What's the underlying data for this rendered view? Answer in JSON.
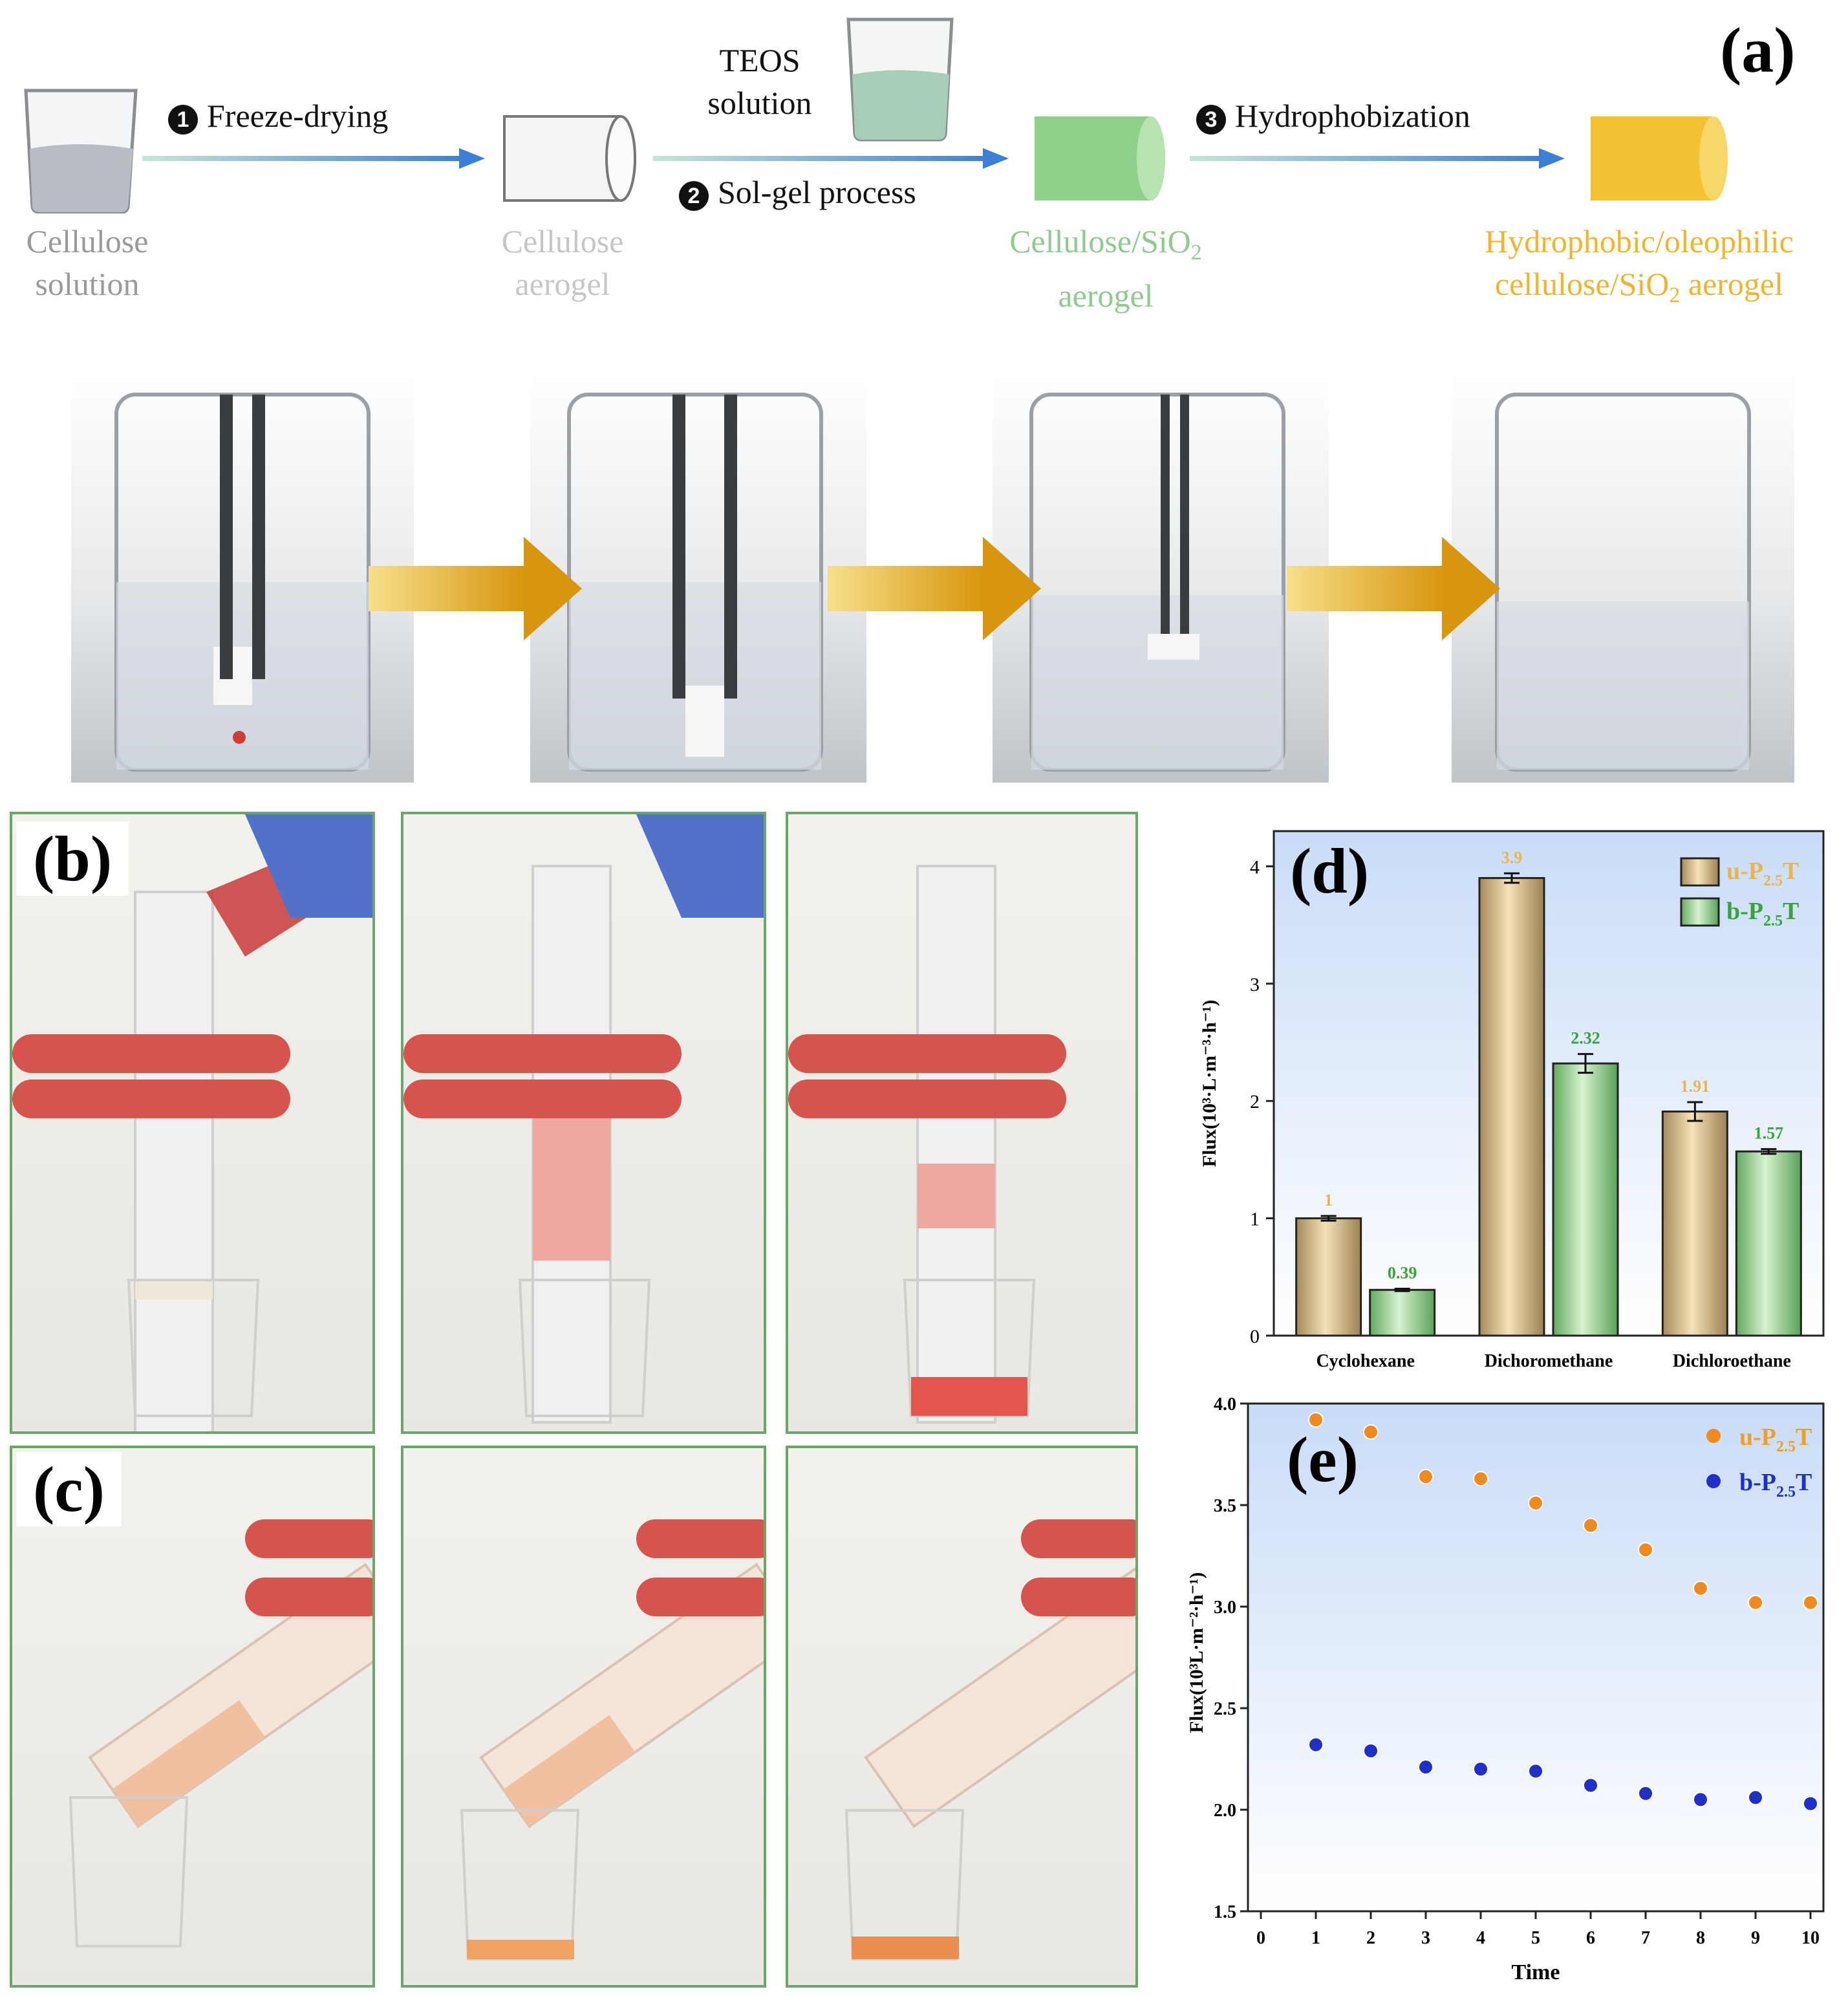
{
  "panel_a": {
    "letter": "(a)",
    "stages": [
      {
        "line1": "Cellulose",
        "line2": "solution",
        "color": "#9a9a9a"
      },
      {
        "line1": "Cellulose",
        "line2": "aerogel",
        "color": "#c6c6c6"
      },
      {
        "line1": "Cellulose/SiO",
        "line1_sub": "2",
        "line2": "aerogel",
        "color": "#8fca8f"
      },
      {
        "line1": "Hydrophobic/oleophilic",
        "line2": "cellulose/SiO",
        "line2_sub": "2",
        "line2_end": " aerogel",
        "color": "#f0b52c"
      }
    ],
    "steps": [
      {
        "num": "1",
        "label": "Freeze-drying"
      },
      {
        "num": "2",
        "label": "Sol-gel process"
      },
      {
        "num": "3",
        "label": "Hydrophobization"
      }
    ],
    "teos": {
      "line1": "TEOS",
      "line2": "solution"
    },
    "colors": {
      "arrow": "#3d7fd6",
      "cylinder_white": "#f4f4f4",
      "cylinder_green": "#8fd08a",
      "cylinder_yellow": "#f3c234",
      "photo_arrow": "#e8a91a"
    }
  },
  "panel_b": {
    "letter": "(b)"
  },
  "panel_c": {
    "letter": "(c)"
  },
  "panel_d": {
    "letter": "(d)",
    "chart_data": {
      "type": "bar",
      "categories": [
        "Cyclohexane",
        "Dichoromethane",
        "Dichloroethane"
      ],
      "series": [
        {
          "name": "u-P",
          "sub": "2.5",
          "suffix": "T",
          "values": [
            1,
            3.9,
            1.91
          ],
          "labels": [
            "1",
            "3.9",
            "1.91"
          ],
          "errors": [
            0.02,
            0.04,
            0.08
          ],
          "color": "#d9bf8c",
          "label_color": "#e8b64a"
        },
        {
          "name": "b-P",
          "sub": "2.5",
          "suffix": "T",
          "values": [
            0.39,
            2.32,
            1.57
          ],
          "labels": [
            "0.39",
            "2.32",
            "1.57"
          ],
          "errors": [
            0.01,
            0.08,
            0.02
          ],
          "color": "#9fd89a",
          "label_color": "#3aa23a"
        }
      ],
      "ylabel": "Flux(10³·L·m⁻³·h⁻¹)",
      "ylim": [
        0,
        4.3
      ],
      "yticks": [
        "0",
        "1",
        "2",
        "3",
        "4"
      ],
      "ytick_values": [
        0,
        1,
        2,
        3,
        4
      ]
    }
  },
  "panel_e": {
    "letter": "(e)",
    "chart_data": {
      "type": "scatter",
      "x": [
        1,
        2,
        3,
        4,
        5,
        6,
        7,
        8,
        9,
        10
      ],
      "series": [
        {
          "name": "u-P",
          "sub": "2.5",
          "suffix": "T",
          "values": [
            3.92,
            3.86,
            3.64,
            3.63,
            3.51,
            3.4,
            3.28,
            3.09,
            3.02,
            3.02
          ],
          "color": "#f08a1c",
          "label_color": "#f0a020"
        },
        {
          "name": "b-P",
          "sub": "2.5",
          "suffix": "T",
          "values": [
            2.32,
            2.29,
            2.21,
            2.2,
            2.19,
            2.12,
            2.08,
            2.05,
            2.06,
            2.03
          ],
          "color": "#1f2fc8",
          "label_color": "#1f2fc8"
        }
      ],
      "xlabel": "Time",
      "ylabel": "Flux(10³L·m⁻²·h⁻¹)",
      "xlim": [
        0,
        10
      ],
      "ylim": [
        1.5,
        4.0
      ],
      "xticks": [
        "0",
        "1",
        "2",
        "3",
        "4",
        "5",
        "6",
        "7",
        "8",
        "9",
        "10"
      ],
      "yticks": [
        "1.5",
        "2.0",
        "2.5",
        "3.0",
        "3.5",
        "4.0"
      ],
      "ytick_values": [
        1.5,
        2.0,
        2.5,
        3.0,
        3.5,
        4.0
      ]
    }
  }
}
